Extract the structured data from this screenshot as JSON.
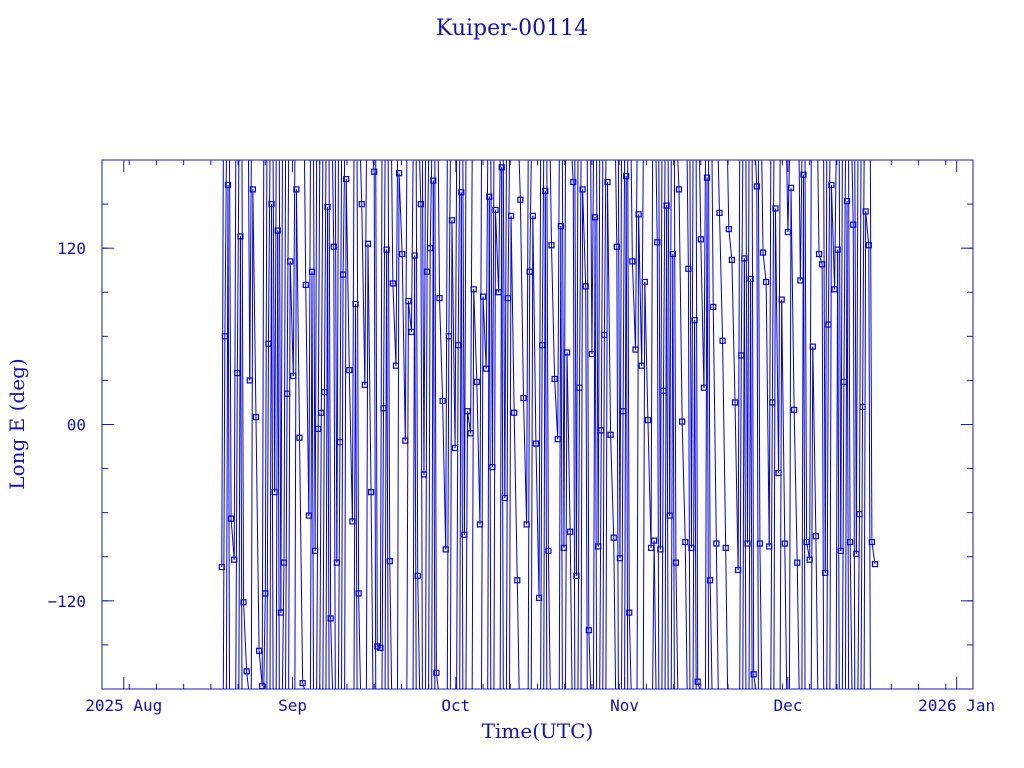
{
  "colors": {
    "axis": "#1a1ab0",
    "series": "#0000e0",
    "text": "#1010b8",
    "background": "#ffffff"
  },
  "chart_data": {
    "type": "line",
    "title": "Kuiper-00114",
    "xlabel": "Time(UTC)",
    "ylabel": "Long E (deg)",
    "xlim": [
      "2025-07-28",
      "2026-01-04"
    ],
    "ylim": [
      -180,
      180
    ],
    "x_ticks": [
      {
        "date": "2025-08-01",
        "label": "2025 Aug"
      },
      {
        "date": "2025-09-01",
        "label": "Sep"
      },
      {
        "date": "2025-10-01",
        "label": "Oct"
      },
      {
        "date": "2025-11-01",
        "label": "Nov"
      },
      {
        "date": "2025-12-01",
        "label": "Dec"
      },
      {
        "date": "2026-01-01",
        "label": "2026 Jan"
      }
    ],
    "y_ticks": [
      {
        "value": -120,
        "label": "−120"
      },
      {
        "value": 0,
        "label": "00"
      },
      {
        "value": 120,
        "label": "120"
      }
    ],
    "marker": "square",
    "grid": false,
    "series": [
      {
        "x_start": "2025-08-19",
        "x_end": "2025-12-17",
        "y_samples": [
          -97,
          60,
          163,
          -64,
          -92,
          35,
          128,
          -121,
          -168,
          30,
          160,
          5,
          -154,
          -178,
          -115,
          55,
          150,
          -46,
          132,
          -128,
          -94,
          21,
          111,
          33,
          160,
          -9,
          -176,
          95,
          -62,
          104,
          -86,
          -3,
          8,
          22,
          148,
          -132,
          121,
          -94,
          -12,
          102,
          167,
          37,
          -66,
          82,
          -115,
          150,
          27,
          123,
          -46,
          172,
          -151,
          -152,
          11,
          119,
          -93,
          96,
          40,
          171,
          116,
          -11,
          84,
          63,
          115,
          -103,
          150,
          -34,
          104,
          120,
          166,
          -169,
          86,
          16,
          -85,
          60,
          139,
          -16,
          54,
          158,
          -75,
          9,
          -6,
          92,
          29,
          -68,
          87,
          38,
          155,
          -29,
          146,
          90,
          175,
          -50,
          86,
          142,
          8,
          -106,
          153,
          18,
          -68,
          104,
          142,
          -13,
          -118,
          54,
          159,
          -86,
          122,
          31,
          -10,
          135,
          -84,
          49,
          -73,
          165,
          -103,
          25,
          160,
          94,
          -140,
          48,
          141,
          -83,
          -4,
          61,
          165,
          -7,
          -77,
          121,
          -91,
          9,
          169,
          -128,
          111,
          51,
          143,
          40,
          97,
          3,
          -84,
          -79,
          124,
          -85,
          23,
          149,
          -62,
          116,
          -94,
          160,
          2,
          -80,
          106,
          -84,
          71,
          -175,
          126,
          25,
          168,
          -106,
          80,
          -81,
          144,
          57,
          -84,
          133,
          112,
          15,
          -99,
          47,
          113,
          -81,
          99,
          -170,
          162,
          -81,
          117,
          97,
          -83,
          15,
          147,
          -33,
          85,
          -81,
          131,
          161,
          10,
          -94,
          98,
          170,
          -80,
          -92,
          53,
          -76,
          116,
          109,
          -101,
          68,
          163,
          92,
          119,
          -86,
          29,
          152,
          -80,
          136,
          -88,
          -61,
          12,
          145,
          122,
          -80,
          -95
        ]
      }
    ]
  }
}
